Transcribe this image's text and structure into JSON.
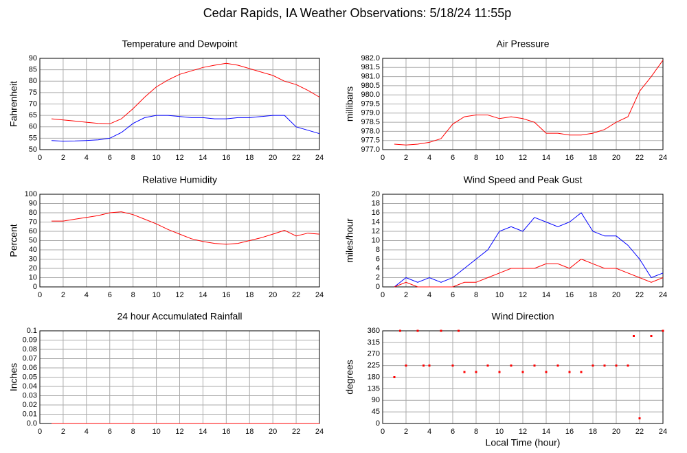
{
  "title": "Cedar Rapids, IA Weather Observations: 5/18/24 11:55p",
  "chart_data": [
    {
      "type": "line",
      "title": "Temperature and Dewpoint",
      "ylabel": "Fahrenheit",
      "grid": true,
      "x": [
        1,
        2,
        3,
        4,
        5,
        6,
        7,
        8,
        9,
        10,
        11,
        12,
        13,
        14,
        15,
        16,
        17,
        18,
        19,
        20,
        21,
        22,
        23,
        24
      ],
      "xlim": [
        0,
        24
      ],
      "xticks": [
        0,
        2,
        4,
        6,
        8,
        10,
        12,
        14,
        16,
        18,
        20,
        22,
        24
      ],
      "ylim": [
        50,
        90
      ],
      "yticks": [
        50,
        55,
        60,
        65,
        70,
        75,
        80,
        85,
        90
      ],
      "series": [
        {
          "color": "#ff0000",
          "values": [
            63.5,
            63,
            62.5,
            62,
            61.5,
            61.3,
            63.5,
            68,
            73,
            77.5,
            80.5,
            83,
            84.5,
            86,
            87,
            87.8,
            87,
            85.5,
            84,
            82.5,
            80,
            78.5,
            76,
            73
          ]
        },
        {
          "color": "#0000ff",
          "values": [
            54,
            53.7,
            53.8,
            54,
            54.3,
            55,
            57.5,
            61.5,
            64,
            65,
            65,
            64.5,
            64,
            64,
            63.5,
            63.5,
            64,
            64,
            64.5,
            65,
            65,
            60,
            58.5,
            57
          ]
        }
      ]
    },
    {
      "type": "line",
      "title": "Air Pressure",
      "ylabel": "millibars",
      "grid": true,
      "x": [
        1,
        2,
        3,
        4,
        5,
        6,
        7,
        8,
        9,
        10,
        11,
        12,
        13,
        14,
        15,
        16,
        17,
        18,
        19,
        20,
        21,
        22,
        23,
        24
      ],
      "xlim": [
        0,
        24
      ],
      "xticks": [
        0,
        2,
        4,
        6,
        8,
        10,
        12,
        14,
        16,
        18,
        20,
        22,
        24
      ],
      "ylim": [
        977,
        982
      ],
      "yticks": [
        {
          "value": 977,
          "label": "977.0"
        },
        977.5,
        {
          "value": 978,
          "label": "978.0"
        },
        978.5,
        {
          "value": 979,
          "label": "979.0"
        },
        979.5,
        {
          "value": 980,
          "label": "980.0"
        },
        980.5,
        {
          "value": 981,
          "label": "981.0"
        },
        981.5,
        {
          "value": 982,
          "label": "982.0"
        }
      ],
      "series": [
        {
          "color": "#ff0000",
          "values": [
            977.3,
            977.25,
            977.3,
            977.4,
            977.6,
            978.4,
            978.8,
            978.9,
            978.9,
            978.7,
            978.8,
            978.7,
            978.5,
            977.9,
            977.9,
            977.8,
            977.8,
            977.9,
            978.1,
            978.5,
            978.8,
            980.2,
            981,
            981.9
          ]
        }
      ]
    },
    {
      "type": "line",
      "title": "Relative Humidity",
      "ylabel": "Percent",
      "grid": true,
      "x": [
        1,
        2,
        3,
        4,
        5,
        6,
        7,
        8,
        9,
        10,
        11,
        12,
        13,
        14,
        15,
        16,
        17,
        18,
        19,
        20,
        21,
        22,
        23,
        24
      ],
      "xlim": [
        0,
        24
      ],
      "xticks": [
        0,
        2,
        4,
        6,
        8,
        10,
        12,
        14,
        16,
        18,
        20,
        22,
        24
      ],
      "ylim": [
        0,
        100
      ],
      "yticks": [
        0,
        10,
        20,
        30,
        40,
        50,
        60,
        70,
        80,
        90,
        100
      ],
      "series": [
        {
          "color": "#ff0000",
          "values": [
            71,
            71,
            73,
            75,
            77,
            80,
            81,
            78,
            73,
            68,
            62,
            57,
            52,
            49,
            47,
            46,
            47,
            50,
            53,
            57,
            61,
            55,
            58,
            57
          ]
        }
      ]
    },
    {
      "type": "line",
      "title": "Wind Speed and Peak Gust",
      "ylabel": "miles/hour",
      "grid": true,
      "x": [
        1,
        2,
        3,
        4,
        5,
        6,
        7,
        8,
        9,
        10,
        11,
        12,
        13,
        14,
        15,
        16,
        17,
        18,
        19,
        20,
        21,
        22,
        23,
        24
      ],
      "xlim": [
        0,
        24
      ],
      "xticks": [
        0,
        2,
        4,
        6,
        8,
        10,
        12,
        14,
        16,
        18,
        20,
        22,
        24
      ],
      "ylim": [
        0,
        20
      ],
      "yticks": [
        0,
        2,
        4,
        6,
        8,
        10,
        12,
        14,
        16,
        18,
        20
      ],
      "series": [
        {
          "color": "#0000ff",
          "values": [
            0,
            2,
            1,
            2,
            1,
            2,
            4,
            6,
            8,
            12,
            13,
            12,
            15,
            14,
            13,
            14,
            16,
            12,
            11,
            11,
            9,
            6,
            2,
            3
          ]
        },
        {
          "color": "#ff0000",
          "values": [
            0,
            1,
            0,
            0,
            0,
            0,
            1,
            1,
            2,
            3,
            4,
            4,
            4,
            5,
            5,
            4,
            6,
            5,
            4,
            4,
            3,
            2,
            1,
            2
          ]
        }
      ]
    },
    {
      "type": "line",
      "title": "24 hour Accumulated Rainfall",
      "ylabel": "Inches",
      "grid": true,
      "x": [
        1,
        2,
        3,
        4,
        5,
        6,
        7,
        8,
        9,
        10,
        11,
        12,
        13,
        14,
        15,
        16,
        17,
        18,
        19,
        20,
        21,
        22,
        23,
        24
      ],
      "xlim": [
        0,
        24
      ],
      "xticks": [
        0,
        2,
        4,
        6,
        8,
        10,
        12,
        14,
        16,
        18,
        20,
        22,
        24
      ],
      "ylim": [
        0,
        0.1
      ],
      "yticks": [
        {
          "value": 0,
          "label": "0.0"
        },
        0.01,
        0.02,
        0.03,
        0.04,
        0.05,
        0.06,
        0.07,
        0.08,
        0.09,
        0.1
      ],
      "series": [
        {
          "color": "#ff0000",
          "values": [
            0,
            0,
            0,
            0,
            0,
            0,
            0,
            0,
            0,
            0,
            0,
            0,
            0,
            0,
            0,
            0,
            0,
            0,
            0,
            0,
            0,
            0,
            0,
            0
          ]
        }
      ]
    },
    {
      "type": "scatter",
      "title": "Wind Direction",
      "ylabel": "degrees",
      "xlabel": "Local Time (hour)",
      "grid": true,
      "x": [
        1,
        1.5,
        2,
        3,
        3.5,
        4,
        5,
        6,
        6.5,
        7,
        8,
        9,
        10,
        11,
        12,
        13,
        14,
        15,
        16,
        17,
        18,
        19,
        20,
        21,
        21.5,
        22,
        23,
        24
      ],
      "xlim": [
        0,
        24
      ],
      "xticks": [
        0,
        2,
        4,
        6,
        8,
        10,
        12,
        14,
        16,
        18,
        20,
        22,
        24
      ],
      "ylim": [
        0,
        360
      ],
      "yticks": [
        0,
        45,
        90,
        135,
        180,
        225,
        270,
        315,
        360
      ],
      "series": [
        {
          "color": "#ff0000",
          "values": [
            180,
            360,
            225,
            360,
            225,
            225,
            360,
            225,
            360,
            200,
            200,
            225,
            200,
            225,
            200,
            225,
            200,
            225,
            200,
            200,
            225,
            225,
            225,
            225,
            340,
            20,
            340,
            360
          ]
        }
      ]
    }
  ]
}
